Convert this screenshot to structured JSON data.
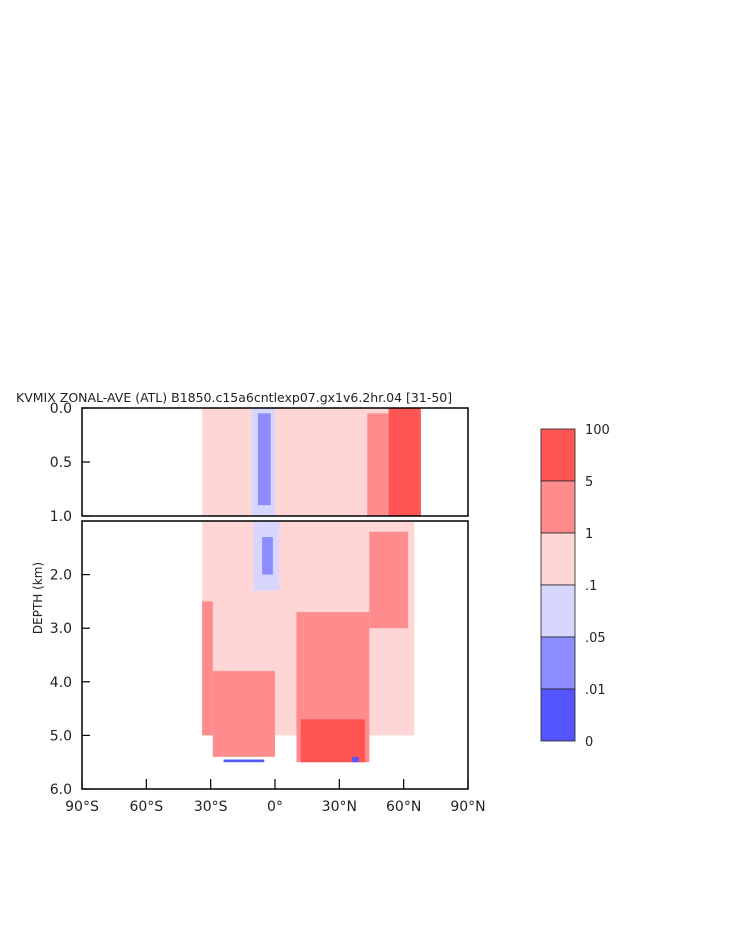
{
  "chart_data": {
    "type": "heatmap",
    "title": "KVMIX ZONAL-AVE (ATL) B1850.c15a6cntlexp07.gx1v6.2hr.04 [31-50]",
    "ylabel": "DEPTH (km)",
    "xlim": [
      -90,
      90
    ],
    "ylim_top_panel": [
      0.0,
      1.0
    ],
    "ylim_bottom_panel": [
      1.0,
      6.0
    ],
    "x_ticks": [
      -90,
      -60,
      -30,
      0,
      30,
      60,
      90
    ],
    "x_tick_labels": [
      "90°S",
      "60°S",
      "30°S",
      "0°",
      "30°N",
      "60°N",
      "90°N"
    ],
    "y_ticks_top": [
      0.0,
      0.5,
      1.0
    ],
    "y_tick_labels_top": [
      "0.0",
      "0.5",
      "1.0"
    ],
    "y_ticks_bottom": [
      2.0,
      3.0,
      4.0,
      5.0,
      6.0
    ],
    "y_tick_labels_bottom": [
      "2.0",
      "3.0",
      "4.0",
      "5.0",
      "6.0"
    ],
    "colorbar": {
      "labels": [
        "100",
        "5",
        "1",
        ".1",
        ".05",
        ".01",
        "0"
      ],
      "bins": [
        {
          "lo": "5",
          "hi": "100",
          "color": "#ff5555"
        },
        {
          "lo": "1",
          "hi": "5",
          "color": "#ff8c8c"
        },
        {
          "lo": ".1",
          "hi": "1",
          "color": "#ffd6d6"
        },
        {
          "lo": ".05",
          "hi": ".1",
          "color": "#d6d6ff"
        },
        {
          "lo": ".01",
          "hi": ".05",
          "color": "#8c8cff"
        },
        {
          "lo": "0",
          "hi": ".01",
          "color": "#5555ff"
        }
      ]
    },
    "regions": [
      {
        "class": 2,
        "lat": [
          -34,
          68
        ],
        "depth": [
          0.0,
          1.0
        ]
      },
      {
        "class": 3,
        "lat": [
          -11,
          0
        ],
        "depth": [
          0.0,
          1.0
        ]
      },
      {
        "class": 4,
        "lat": [
          -8,
          -2
        ],
        "depth": [
          0.05,
          0.9
        ]
      },
      {
        "class": 1,
        "lat": [
          43,
          68
        ],
        "depth": [
          0.05,
          1.0
        ]
      },
      {
        "class": 0,
        "lat": [
          53,
          68
        ],
        "depth": [
          0.0,
          1.0
        ]
      },
      {
        "class": 2,
        "lat": [
          -34,
          65
        ],
        "depth": [
          1.0,
          5.0
        ]
      },
      {
        "class": 3,
        "lat": [
          -10,
          2
        ],
        "depth": [
          1.0,
          2.3
        ]
      },
      {
        "class": 4,
        "lat": [
          -6,
          -1
        ],
        "depth": [
          1.3,
          2.0
        ]
      },
      {
        "class": 1,
        "lat": [
          -34,
          -29
        ],
        "depth": [
          2.5,
          5.0
        ]
      },
      {
        "class": 1,
        "lat": [
          -29,
          0
        ],
        "depth": [
          3.8,
          5.4
        ]
      },
      {
        "class": 1,
        "lat": [
          10,
          44
        ],
        "depth": [
          2.7,
          5.5
        ]
      },
      {
        "class": 1,
        "lat": [
          44,
          62
        ],
        "depth": [
          1.2,
          3.0
        ]
      },
      {
        "class": 0,
        "lat": [
          12,
          42
        ],
        "depth": [
          4.7,
          5.5
        ]
      },
      {
        "class": 5,
        "lat": [
          -24,
          -5
        ],
        "depth": [
          5.45,
          5.5
        ]
      },
      {
        "class": 5,
        "lat": [
          36,
          39
        ],
        "depth": [
          5.4,
          5.5
        ]
      }
    ]
  }
}
